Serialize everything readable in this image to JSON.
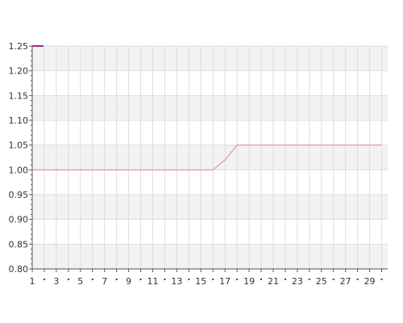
{
  "chart_data": {
    "type": "line",
    "x": [
      1,
      2,
      3,
      4,
      5,
      6,
      7,
      8,
      9,
      10,
      11,
      12,
      13,
      14,
      15,
      16,
      17,
      18,
      19,
      20,
      21,
      22,
      23,
      24,
      25,
      26,
      27,
      28,
      29,
      30
    ],
    "x_tick_labels": [
      "1",
      "3",
      "5",
      "7",
      "9",
      "11",
      "13",
      "15",
      "17",
      "19",
      "21",
      "23",
      "25",
      "27",
      "29"
    ],
    "series": [
      {
        "values": [
          1,
          1,
          1,
          1,
          1,
          1,
          1,
          1,
          1,
          1,
          1,
          1,
          1,
          1,
          1,
          1,
          1.02,
          1.05,
          1.05,
          1.05,
          1.05,
          1.05,
          1.05,
          1.05,
          1.05,
          1.05,
          1.05,
          1.05,
          1.05,
          1.05
        ]
      }
    ],
    "ylim": [
      0.8,
      1.25
    ],
    "yticks": [
      "0.80",
      "0.85",
      "0.90",
      "0.95",
      "1.00",
      "1.05",
      "1.10",
      "1.15",
      "1.20",
      "1.25"
    ],
    "xlabel": "",
    "ylabel": "",
    "grid": true,
    "band_color": "#f2f2f2",
    "grid_color": "#dddddd",
    "axis_color": "#555555",
    "line_color": "#e57bb5",
    "legend_marker_color": "#9c2a8c"
  }
}
